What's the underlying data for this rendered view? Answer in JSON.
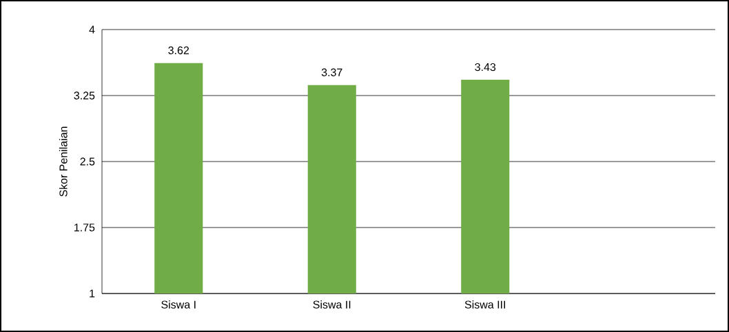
{
  "chart_data": {
    "type": "bar",
    "ylabel": "Skor Penilaian",
    "categories": [
      "Siswa I",
      "Siswa II",
      "Siswa III",
      null
    ],
    "values": [
      3.62,
      3.37,
      3.43,
      null
    ],
    "color": "#70ad47",
    "ylim": [
      1,
      4
    ],
    "yticks": [
      1,
      1.75,
      2.5,
      3.25,
      4
    ],
    "grid": "y",
    "data_labels": true
  }
}
